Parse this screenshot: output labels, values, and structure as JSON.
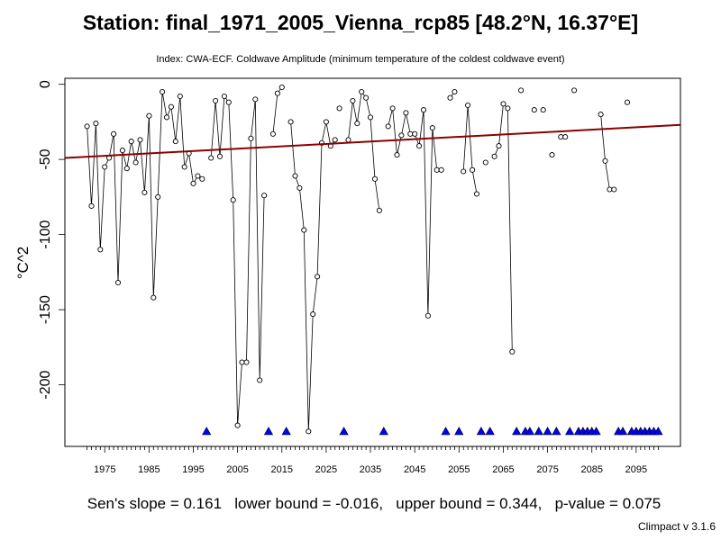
{
  "title": "Station: final_1971_2005_Vienna_rcp85 [48.2°N, 16.37°E]",
  "subtitle": "Index: CWA-ECF. Coldwave Amplitude (minimum temperature of the coldest coldwave event)",
  "stats": {
    "text": "Sen's slope = 0.161   lower bound = -0.016,   upper bound = 0.344,   p-value = 0.075"
  },
  "version": "Climpact v 3.1.6",
  "colors": {
    "trend": "#8b0000",
    "marker": "#0000ff",
    "series": "#000000"
  },
  "chart_data": {
    "type": "line",
    "title": "Station: final_1971_2005_Vienna_rcp85 [48.2°N, 16.37°E]",
    "subtitle": "Index: CWA-ECF. Coldwave Amplitude (minimum temperature of the coldest coldwave event)",
    "xlabel": "",
    "ylabel": "°C^2",
    "xlim": [
      1966,
      2105
    ],
    "ylim": [
      -241,
      4
    ],
    "x_ticks": [
      1975,
      1985,
      1995,
      2005,
      2015,
      2025,
      2035,
      2045,
      2055,
      2065,
      2075,
      2085,
      2095
    ],
    "y_ticks": [
      0,
      -50,
      -100,
      -150,
      -200
    ],
    "grid": false,
    "segments": [
      [
        [
          1971,
          -28
        ],
        [
          1972,
          -81
        ],
        [
          1973,
          -26
        ],
        [
          1974,
          -110
        ],
        [
          1975,
          -55
        ],
        [
          1976,
          -49
        ],
        [
          1977,
          -33
        ],
        [
          1978,
          -132
        ],
        [
          1979,
          -44
        ],
        [
          1980,
          -56
        ],
        [
          1981,
          -38
        ],
        [
          1982,
          -52
        ],
        [
          1983,
          -37
        ],
        [
          1984,
          -72
        ],
        [
          1985,
          -21
        ],
        [
          1986,
          -142
        ],
        [
          1987,
          -75
        ],
        [
          1988,
          -5
        ],
        [
          1989,
          -22
        ],
        [
          1990,
          -15
        ],
        [
          1991,
          -38
        ],
        [
          1992,
          -8
        ],
        [
          1993,
          -55
        ],
        [
          1994,
          -46
        ],
        [
          1995,
          -66
        ],
        [
          1996,
          -61
        ],
        [
          1997,
          -63
        ]
      ],
      [
        [
          1999,
          -49
        ],
        [
          2000,
          -11
        ],
        [
          2001,
          -48
        ],
        [
          2002,
          -8
        ],
        [
          2003,
          -12
        ],
        [
          2004,
          -77
        ],
        [
          2005,
          -227
        ],
        [
          2006,
          -185
        ],
        [
          2007,
          -185
        ],
        [
          2008,
          -36
        ],
        [
          2009,
          -10
        ],
        [
          2010,
          -197
        ],
        [
          2011,
          -74
        ]
      ],
      [
        [
          2013,
          -33
        ],
        [
          2014,
          -6
        ],
        [
          2015,
          -2
        ]
      ],
      [
        [
          2017,
          -25
        ],
        [
          2018,
          -61
        ],
        [
          2019,
          -69
        ],
        [
          2020,
          -97
        ],
        [
          2021,
          -231
        ],
        [
          2022,
          -153
        ],
        [
          2023,
          -128
        ],
        [
          2024,
          -39
        ],
        [
          2025,
          -25
        ],
        [
          2026,
          -41
        ],
        [
          2027,
          -37
        ]
      ],
      [
        [
          2028,
          -16
        ]
      ],
      [
        [
          2030,
          -37
        ],
        [
          2031,
          -11
        ],
        [
          2032,
          -26
        ],
        [
          2033,
          -5
        ],
        [
          2034,
          -9
        ],
        [
          2035,
          -22
        ],
        [
          2036,
          -63
        ],
        [
          2037,
          -84
        ]
      ],
      [
        [
          2039,
          -28
        ],
        [
          2040,
          -16
        ],
        [
          2041,
          -47
        ],
        [
          2042,
          -34
        ],
        [
          2043,
          -19
        ],
        [
          2044,
          -33
        ],
        [
          2045,
          -33
        ],
        [
          2046,
          -41
        ],
        [
          2047,
          -17
        ],
        [
          2048,
          -154
        ],
        [
          2049,
          -29
        ],
        [
          2050,
          -57
        ],
        [
          2051,
          -57
        ]
      ],
      [
        [
          2053,
          -9
        ],
        [
          2054,
          -5
        ]
      ],
      [
        [
          2056,
          -58
        ],
        [
          2057,
          -14
        ],
        [
          2058,
          -57
        ],
        [
          2059,
          -73
        ]
      ],
      [
        [
          2061,
          -52
        ]
      ],
      [
        [
          2063,
          -48
        ],
        [
          2064,
          -41
        ],
        [
          2065,
          -13
        ],
        [
          2066,
          -16
        ],
        [
          2067,
          -178
        ]
      ],
      [
        [
          2069,
          -4
        ]
      ],
      [
        [
          2072,
          -17
        ]
      ],
      [
        [
          2074,
          -17
        ]
      ],
      [
        [
          2076,
          -47
        ]
      ],
      [
        [
          2078,
          -35
        ],
        [
          2079,
          -35
        ]
      ],
      [
        [
          2081,
          -4
        ]
      ],
      [
        [
          2087,
          -20
        ],
        [
          2088,
          -51
        ],
        [
          2089,
          -70
        ],
        [
          2090,
          -70
        ]
      ],
      [
        [
          2093,
          -12
        ]
      ]
    ],
    "missing_years": [
      1998,
      2012,
      2016,
      2029,
      2038,
      2052,
      2055,
      2060,
      2062,
      2068,
      2070,
      2071,
      2073,
      2075,
      2077,
      2080,
      2082,
      2083,
      2084,
      2085,
      2086,
      2091,
      2092,
      2094,
      2095,
      2096,
      2097,
      2098,
      2099,
      2100
    ],
    "missing_marker_y": -231,
    "trend": {
      "start": [
        1966,
        -49
      ],
      "end": [
        2105,
        -27
      ]
    }
  }
}
